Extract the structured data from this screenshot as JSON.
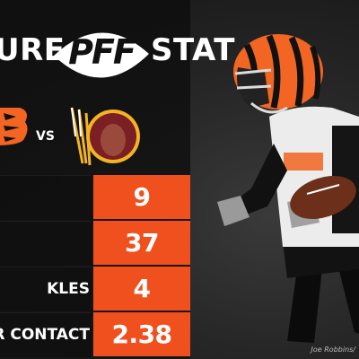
{
  "title": {
    "left_word": "URE",
    "logo_text": "PFF",
    "right_word": "STAT"
  },
  "matchup": {
    "vs_label": "VS",
    "team_left_icon": "bengals-logo",
    "team_right_icon": "redskins-logo"
  },
  "stats": [
    {
      "label": "",
      "value": "9"
    },
    {
      "label": "",
      "value": "37"
    },
    {
      "label": "KLES",
      "value": "4"
    },
    {
      "label": "R CONTACT",
      "value": "2.38"
    }
  ],
  "colors": {
    "accent_orange": "#f0501e",
    "bengals_orange": "#f26522",
    "redskins_burgundy": "#7a1f23",
    "redskins_gold": "#f4b325"
  },
  "photo_credit": "Joe Robbins/"
}
